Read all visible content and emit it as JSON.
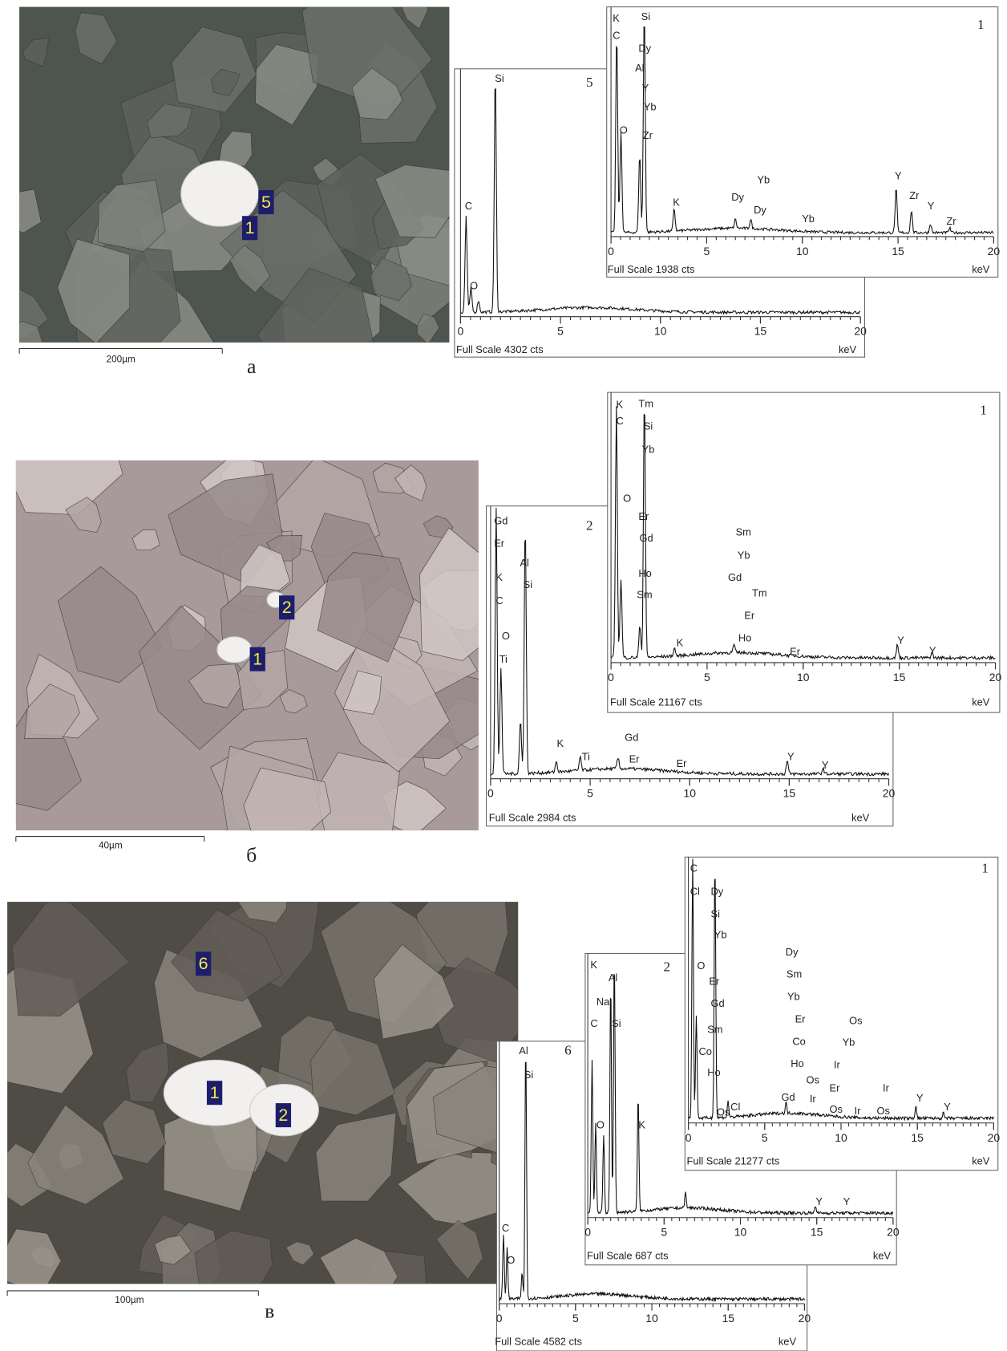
{
  "panels": [
    {
      "letter": "а",
      "scale_bar": "200µm",
      "markers": [
        "5",
        "1"
      ],
      "spectra": [
        {
          "number": "5",
          "full_scale": "Full Scale 4302 cts",
          "unit": "keV",
          "ticks": [
            0,
            5,
            10,
            15,
            20
          ],
          "labels": [
            "Si",
            "C",
            "O"
          ]
        },
        {
          "number": "1",
          "full_scale": "Full Scale 1938 cts",
          "unit": "keV",
          "ticks": [
            0,
            5,
            10,
            15,
            20
          ],
          "labels": [
            "K",
            "C",
            "Si",
            "Dy",
            "Al",
            "Y",
            "Yb",
            "O",
            "Zr",
            "K",
            "Dy",
            "Yb",
            "Dy",
            "Yb",
            "Y",
            "Zr",
            "Y",
            "Zr"
          ]
        }
      ]
    },
    {
      "letter": "б",
      "scale_bar": "40µm",
      "markers": [
        "2",
        "1"
      ],
      "spectra": [
        {
          "number": "2",
          "full_scale": "Full Scale 2984 cts",
          "unit": "keV",
          "ticks": [
            0,
            5,
            10,
            15,
            20
          ],
          "labels": [
            "Gd",
            "Er",
            "Al",
            "Si",
            "K",
            "C",
            "O",
            "Ti",
            "K",
            "Ti",
            "Gd",
            "Er",
            "Er",
            "Y",
            "Y"
          ]
        },
        {
          "number": "1",
          "full_scale": "Full Scale 21167 cts",
          "unit": "keV",
          "ticks": [
            0,
            5,
            10,
            15,
            20
          ],
          "labels": [
            "K",
            "Tm",
            "C",
            "Si",
            "Yb",
            "O",
            "Er",
            "Gd",
            "Ho",
            "Sm",
            "Sm",
            "Yb",
            "Gd",
            "Tm",
            "Er",
            "Ho",
            "K",
            "Er",
            "Y",
            "Y"
          ]
        }
      ]
    },
    {
      "letter": "в",
      "scale_bar": "100µm",
      "markers": [
        "6",
        "1",
        "2"
      ],
      "spectra": [
        {
          "number": "6",
          "full_scale": "Full Scale 4582 cts",
          "unit": "keV",
          "ticks": [
            0,
            5,
            10,
            15,
            20
          ],
          "labels": [
            "Al",
            "Si",
            "C",
            "O"
          ]
        },
        {
          "number": "2",
          "full_scale": "Full Scale 687 cts",
          "unit": "keV",
          "ticks": [
            0,
            5,
            10,
            15,
            20
          ],
          "labels": [
            "K",
            "Al",
            "Na",
            "C",
            "Si",
            "O",
            "K",
            "Y",
            "Y"
          ]
        },
        {
          "number": "1",
          "full_scale": "Full Scale 21277 cts",
          "unit": "keV",
          "ticks": [
            0,
            5,
            10,
            15,
            20
          ],
          "labels": [
            "C",
            "Cl",
            "Dy",
            "Si",
            "Yb",
            "O",
            "Er",
            "Gd",
            "Sm",
            "Co",
            "Ho",
            "Cl",
            "Os",
            "Dy",
            "Sm",
            "Yb",
            "Er",
            "Co",
            "Ho",
            "Os",
            "Ir",
            "Gd",
            "Er",
            "Ir",
            "Yb",
            "Os",
            "Ir",
            "Os",
            "Ir",
            "Os",
            "Y",
            "Y"
          ]
        }
      ]
    }
  ]
}
